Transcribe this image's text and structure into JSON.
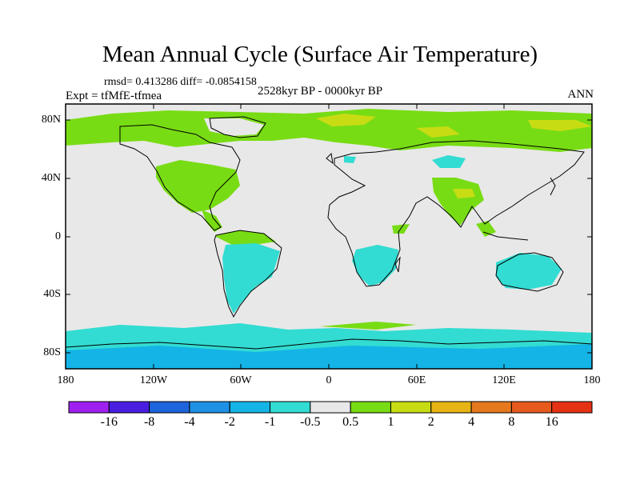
{
  "title": "Mean Annual Cycle (Surface Air Temperature)",
  "stats": "rmsd= 0.413286 diff= -0.0854158",
  "experiment": "Expt = tfMfE-tfmea",
  "period": "2528kyr BP - 0000kyr BP",
  "season": "ANN",
  "axes": {
    "lat_labels": [
      "80N",
      "40N",
      "0",
      "40S",
      "80S"
    ],
    "lon_labels": [
      "180",
      "120W",
      "60W",
      "0",
      "60E",
      "120E",
      "180"
    ]
  },
  "colorbar": {
    "labels": [
      "-16",
      "-8",
      "-4",
      "-2",
      "-1",
      "-0.5",
      "0.5",
      "1",
      "2",
      "4",
      "8",
      "16"
    ],
    "colors": [
      "#a020f0",
      "#4a1ee0",
      "#1e64dc",
      "#1e90e6",
      "#14b4e6",
      "#32dcd2",
      "#e8e8e8",
      "#78dc14",
      "#c8dc14",
      "#e6b414",
      "#e6781e",
      "#e65a1e",
      "#e63214"
    ]
  },
  "palette": {
    "ocean": "#e8e8e8",
    "green": "#78dc14",
    "cyan": "#32dcd2",
    "yellow": "#c8dc14",
    "coast": "#000000",
    "frame": "#000000"
  }
}
